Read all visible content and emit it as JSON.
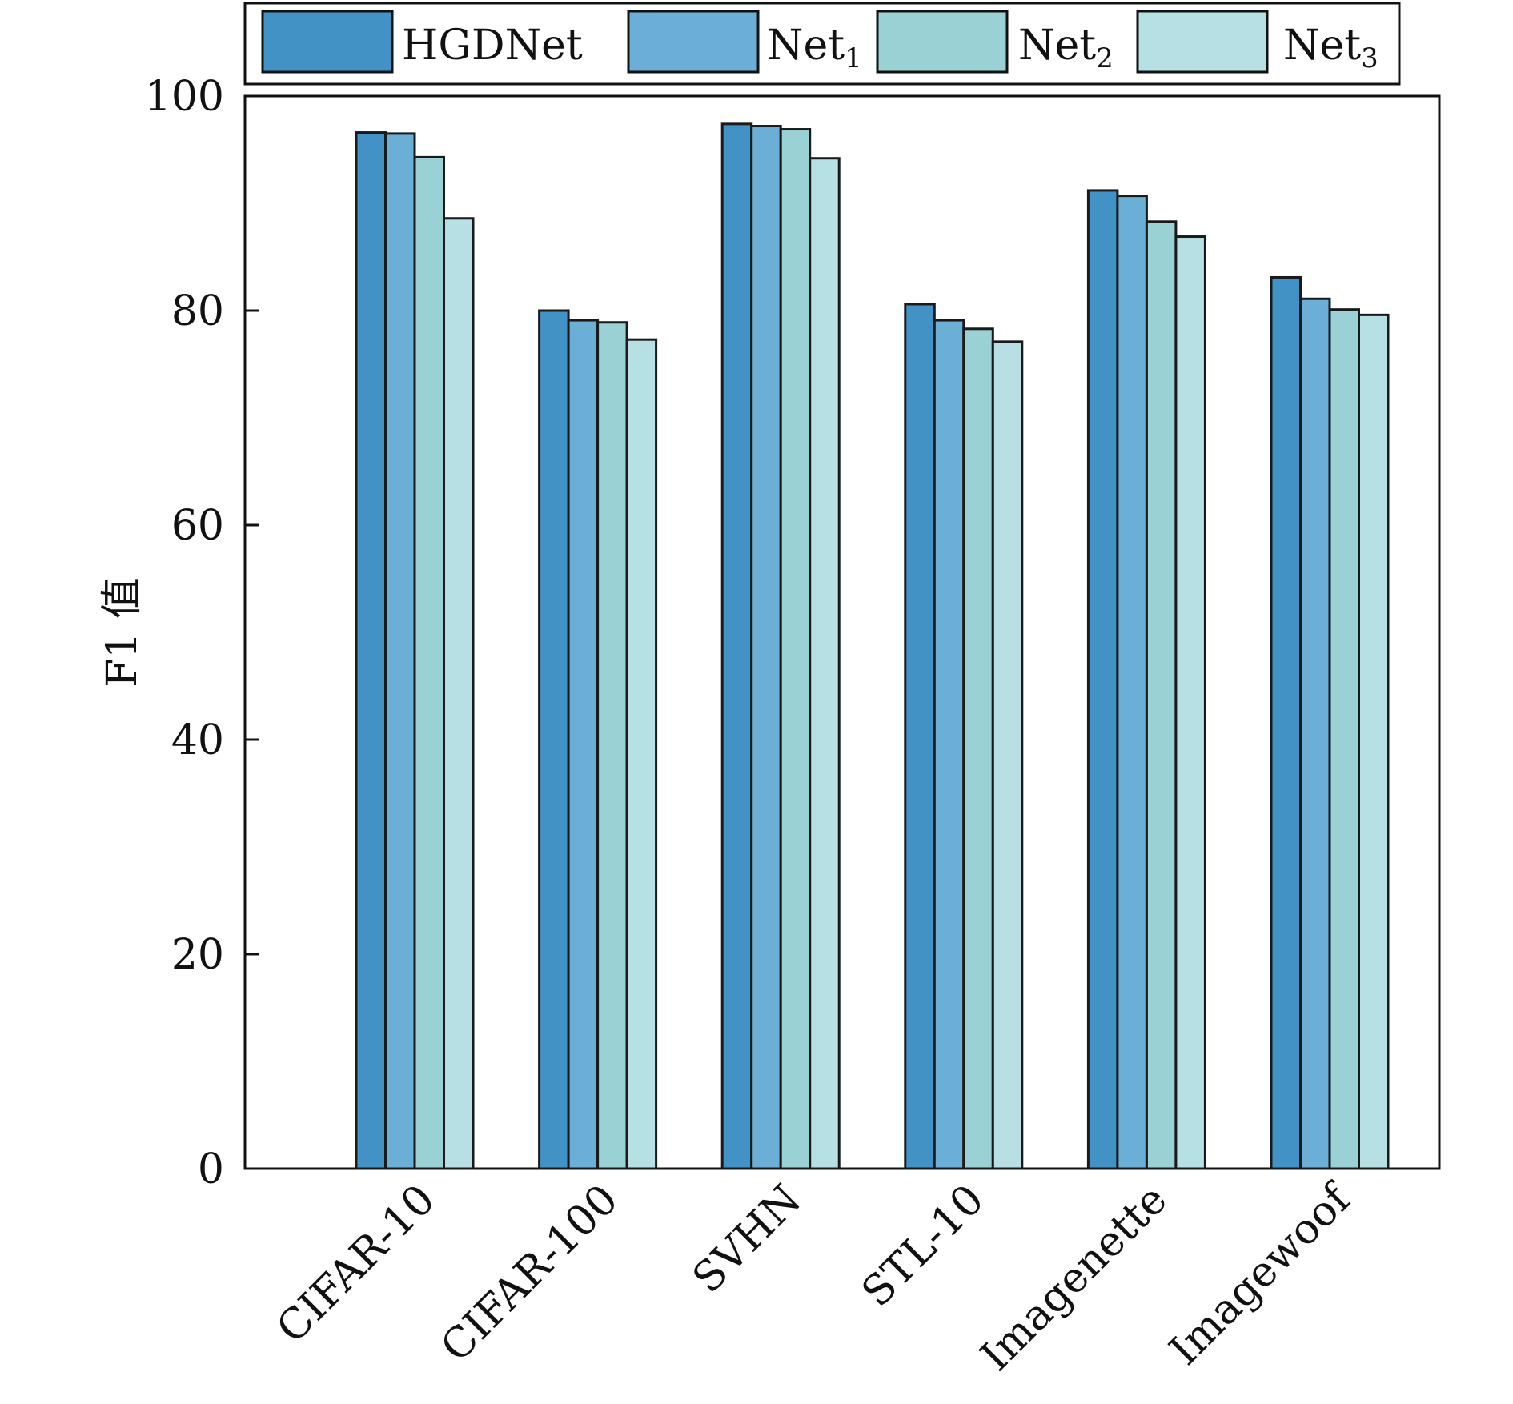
{
  "chart_data": {
    "type": "bar",
    "title": "",
    "xlabel": "",
    "ylabel": "F1 值",
    "ylim": [
      0,
      100
    ],
    "yticks": [
      0,
      20,
      40,
      60,
      80,
      100
    ],
    "grid": false,
    "legend_position": "top",
    "categories": [
      "CIFAR-10",
      "CIFAR-100",
      "SVHN",
      "STL-10",
      "Imagenette",
      "Imagewoof"
    ],
    "series": [
      {
        "name": "HGDNet",
        "color": "#4292c6",
        "values": [
          96.6,
          80.0,
          97.4,
          80.6,
          91.2,
          83.1
        ]
      },
      {
        "name": "Net",
        "subscript": "1",
        "color": "#6baed6",
        "values": [
          96.5,
          79.1,
          97.2,
          79.1,
          90.7,
          81.1
        ]
      },
      {
        "name": "Net",
        "subscript": "2",
        "color": "#9ad1d4",
        "values": [
          94.3,
          78.9,
          96.9,
          78.3,
          88.3,
          80.1
        ]
      },
      {
        "name": "Net",
        "subscript": "3",
        "color": "#b6e0e4",
        "values": [
          88.6,
          77.3,
          94.2,
          77.1,
          86.9,
          79.6
        ]
      }
    ]
  }
}
